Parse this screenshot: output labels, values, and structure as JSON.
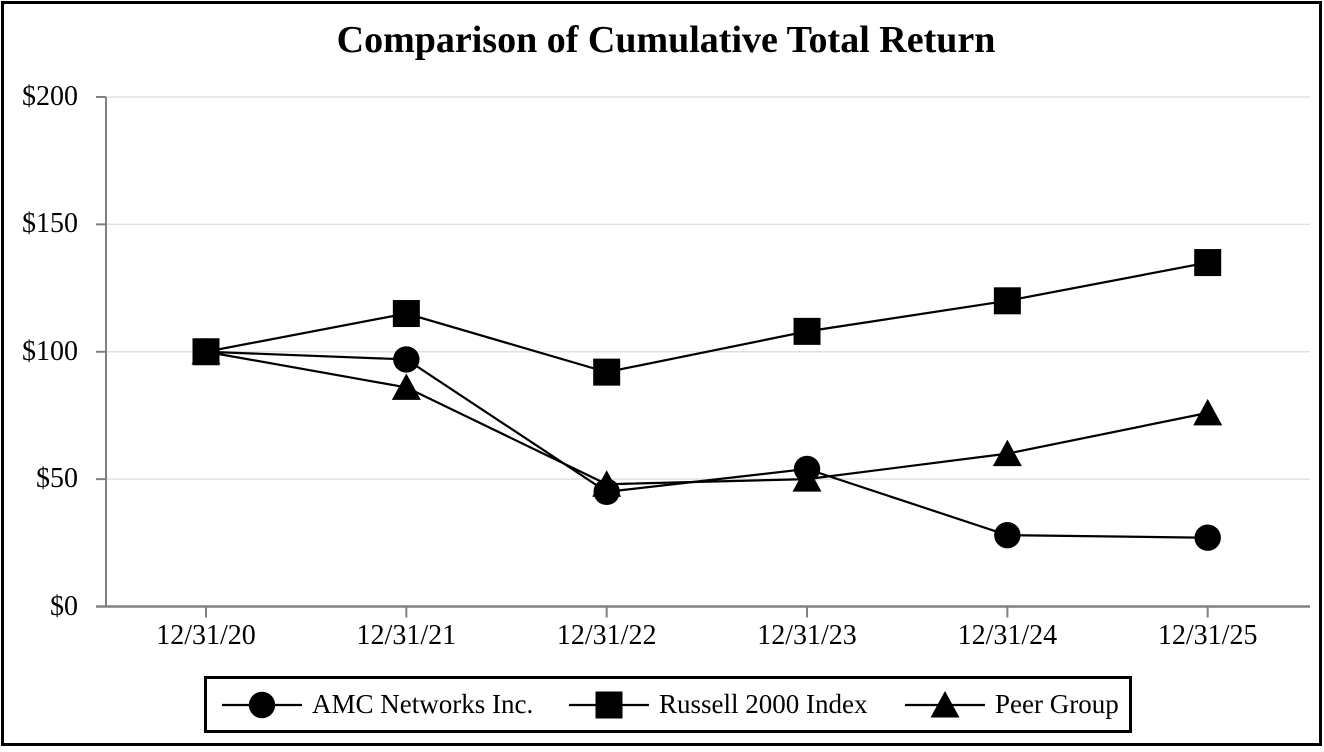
{
  "chart_data": {
    "type": "line",
    "title": "Comparison of Cumulative Total Return",
    "categories": [
      "12/31/20",
      "12/31/21",
      "12/31/22",
      "12/31/23",
      "12/31/24",
      "12/31/25"
    ],
    "series": [
      {
        "name": "AMC Networks Inc.",
        "marker": "circle",
        "values": [
          100,
          97,
          45,
          54,
          28,
          27
        ]
      },
      {
        "name": "Russell 2000 Index",
        "marker": "square",
        "values": [
          100,
          115,
          92,
          108,
          120,
          135
        ]
      },
      {
        "name": "Peer Group",
        "marker": "triangle",
        "values": [
          100,
          86,
          48,
          50,
          60,
          76
        ]
      }
    ],
    "y_ticks": [
      {
        "value": 0,
        "label": "$0"
      },
      {
        "value": 50,
        "label": "$50"
      },
      {
        "value": 100,
        "label": "$100"
      },
      {
        "value": 150,
        "label": "$150"
      },
      {
        "value": 200,
        "label": "$200"
      }
    ],
    "ylim": [
      0,
      200
    ],
    "xlabel": "",
    "ylabel": "",
    "grid": "horizontal",
    "legend_position": "bottom",
    "colors": {
      "series": "#000000",
      "axis": "#808080",
      "grid": "#e0e0e0",
      "text": "#000000",
      "background": "#ffffff"
    }
  }
}
